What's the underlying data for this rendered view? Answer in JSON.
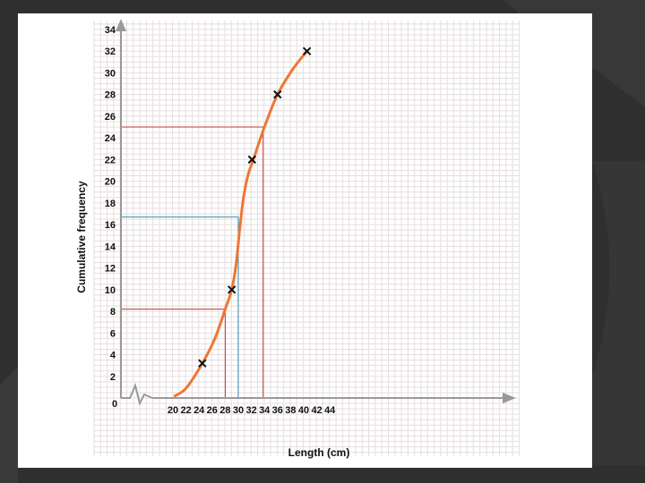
{
  "chart_data": {
    "type": "line",
    "title": "",
    "xlabel": "Length (cm)",
    "ylabel": "Cumulative frequency",
    "xlim": [
      20,
      44
    ],
    "ylim": [
      0,
      34
    ],
    "x_ticks": [
      20,
      22,
      24,
      26,
      28,
      30,
      32,
      34,
      36,
      38,
      40,
      42,
      44
    ],
    "y_ticks": [
      2,
      4,
      6,
      8,
      10,
      12,
      14,
      16,
      18,
      20,
      22,
      24,
      26,
      28,
      30,
      32,
      34
    ],
    "origin_label": "0",
    "axis_break": true,
    "grid": true,
    "series": [
      {
        "color": "#ee7733",
        "curve": [
          [
            20.3,
            0.2
          ],
          [
            22,
            0.9
          ],
          [
            24.5,
            3.2
          ],
          [
            26.5,
            5.6
          ],
          [
            28,
            8.2
          ],
          [
            29,
            10.0
          ],
          [
            29.7,
            12.5
          ],
          [
            30.2,
            15.5
          ],
          [
            30.8,
            18.5
          ],
          [
            31.5,
            20.6
          ],
          [
            32.3,
            22.0
          ],
          [
            34,
            25.0
          ],
          [
            36,
            28.0
          ],
          [
            38.3,
            30.3
          ],
          [
            40.5,
            32.0
          ]
        ],
        "points": [
          {
            "x": 24.5,
            "y": 3.2
          },
          {
            "x": 29,
            "y": 10
          },
          {
            "x": 32.1,
            "y": 22
          },
          {
            "x": 36,
            "y": 28
          },
          {
            "x": 40.5,
            "y": 32
          }
        ],
        "marker": "x"
      }
    ],
    "reading_lines": [
      {
        "x": 28,
        "y": 8.2,
        "color": "#c0392b"
      },
      {
        "x": 30,
        "y": 16.7,
        "color": "#3a8fb7"
      },
      {
        "x": 33.8,
        "y": 25,
        "color": "#c0392b"
      }
    ]
  }
}
